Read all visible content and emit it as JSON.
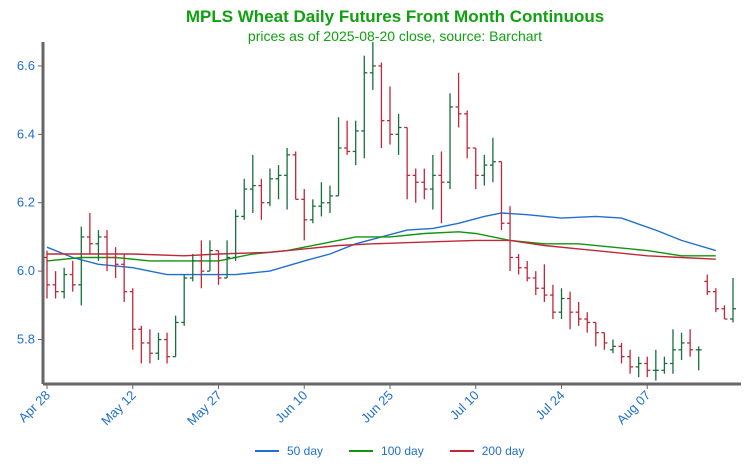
{
  "chart_data": {
    "type": "ohlc",
    "title": "MPLS Wheat Daily Futures Front Month Continuous",
    "subtitle": "prices as of 2025-08-20 close, source: Barchart",
    "ylim": [
      5.67,
      6.67
    ],
    "yticks": [
      5.8,
      6.0,
      6.2,
      6.4,
      6.6
    ],
    "xtick_labels": [
      "Apr 28",
      "May 12",
      "May 27",
      "Jun 10",
      "Jun 25",
      "Jul 10",
      "Jul 24",
      "Aug 07"
    ],
    "xtick_index": [
      0,
      10,
      20,
      30,
      40,
      50,
      60,
      70
    ],
    "up_color": "#1a6e3c",
    "down_color": "#c0283a",
    "bars": [
      {
        "d": "Apr 28",
        "o": 6.04,
        "h": 6.06,
        "l": 5.92,
        "c": 5.96
      },
      {
        "d": "Apr 29",
        "o": 5.96,
        "h": 6.0,
        "l": 5.92,
        "c": 5.94
      },
      {
        "d": "Apr 30",
        "o": 5.94,
        "h": 6.01,
        "l": 5.92,
        "c": 5.99
      },
      {
        "d": "May 01",
        "o": 5.99,
        "h": 6.03,
        "l": 5.94,
        "c": 5.96
      },
      {
        "d": "May 02",
        "o": 5.96,
        "h": 6.13,
        "l": 5.9,
        "c": 6.1
      },
      {
        "d": "May 05",
        "o": 6.1,
        "h": 6.17,
        "l": 6.05,
        "c": 6.08
      },
      {
        "d": "May 06",
        "o": 6.08,
        "h": 6.12,
        "l": 6.03,
        "c": 6.1
      },
      {
        "d": "May 07",
        "o": 6.1,
        "h": 6.12,
        "l": 6.0,
        "c": 6.04
      },
      {
        "d": "May 08",
        "o": 6.04,
        "h": 6.07,
        "l": 5.98,
        "c": 6.02
      },
      {
        "d": "May 09",
        "o": 6.02,
        "h": 6.05,
        "l": 5.91,
        "c": 5.94
      },
      {
        "d": "May 12",
        "o": 5.94,
        "h": 5.95,
        "l": 5.77,
        "c": 5.83
      },
      {
        "d": "May 13",
        "o": 5.83,
        "h": 5.84,
        "l": 5.73,
        "c": 5.79
      },
      {
        "d": "May 14",
        "o": 5.79,
        "h": 5.83,
        "l": 5.73,
        "c": 5.76
      },
      {
        "d": "May 15",
        "o": 5.76,
        "h": 5.82,
        "l": 5.74,
        "c": 5.8
      },
      {
        "d": "May 16",
        "o": 5.8,
        "h": 5.82,
        "l": 5.73,
        "c": 5.75
      },
      {
        "d": "May 19",
        "o": 5.75,
        "h": 5.87,
        "l": 5.75,
        "c": 5.85
      },
      {
        "d": "May 20",
        "o": 5.85,
        "h": 5.99,
        "l": 5.84,
        "c": 5.98
      },
      {
        "d": "May 21",
        "o": 5.98,
        "h": 6.05,
        "l": 5.97,
        "c": 6.03
      },
      {
        "d": "May 22",
        "o": 6.03,
        "h": 6.09,
        "l": 5.95,
        "c": 6.0
      },
      {
        "d": "May 23",
        "o": 6.0,
        "h": 6.09,
        "l": 6.0,
        "c": 6.06
      },
      {
        "d": "May 26",
        "o": 6.06,
        "h": 6.06,
        "l": 5.96,
        "c": 5.98
      },
      {
        "d": "May 27",
        "o": 5.98,
        "h": 6.09,
        "l": 5.98,
        "c": 6.04
      },
      {
        "d": "May 28",
        "o": 6.04,
        "h": 6.18,
        "l": 6.03,
        "c": 6.16
      },
      {
        "d": "May 29",
        "o": 6.16,
        "h": 6.27,
        "l": 6.15,
        "c": 6.24
      },
      {
        "d": "May 30",
        "o": 6.24,
        "h": 6.34,
        "l": 6.17,
        "c": 6.25
      },
      {
        "d": "Jun 02",
        "o": 6.25,
        "h": 6.27,
        "l": 6.15,
        "c": 6.2
      },
      {
        "d": "Jun 03",
        "o": 6.2,
        "h": 6.3,
        "l": 6.19,
        "c": 6.27
      },
      {
        "d": "Jun 04",
        "o": 6.27,
        "h": 6.31,
        "l": 6.21,
        "c": 6.28
      },
      {
        "d": "Jun 05",
        "o": 6.28,
        "h": 6.36,
        "l": 6.18,
        "c": 6.34
      },
      {
        "d": "Jun 06",
        "o": 6.34,
        "h": 6.35,
        "l": 6.21,
        "c": 6.21
      },
      {
        "d": "Jun 09",
        "o": 6.21,
        "h": 6.24,
        "l": 6.09,
        "c": 6.15
      },
      {
        "d": "Jun 10",
        "o": 6.15,
        "h": 6.21,
        "l": 6.14,
        "c": 6.19
      },
      {
        "d": "Jun 11",
        "o": 6.19,
        "h": 6.26,
        "l": 6.16,
        "c": 6.2
      },
      {
        "d": "Jun 12",
        "o": 6.2,
        "h": 6.25,
        "l": 6.17,
        "c": 6.22
      },
      {
        "d": "Jun 13",
        "o": 6.22,
        "h": 6.45,
        "l": 6.22,
        "c": 6.36
      },
      {
        "d": "Jun 16",
        "o": 6.36,
        "h": 6.44,
        "l": 6.34,
        "c": 6.35
      },
      {
        "d": "Jun 17",
        "o": 6.35,
        "h": 6.44,
        "l": 6.31,
        "c": 6.41
      },
      {
        "d": "Jun 18",
        "o": 6.41,
        "h": 6.63,
        "l": 6.33,
        "c": 6.58
      },
      {
        "d": "Jun 20",
        "o": 6.58,
        "h": 6.67,
        "l": 6.53,
        "c": 6.6
      },
      {
        "d": "Jun 23",
        "o": 6.6,
        "h": 6.61,
        "l": 6.36,
        "c": 6.44
      },
      {
        "d": "Jun 24",
        "o": 6.44,
        "h": 6.54,
        "l": 6.37,
        "c": 6.4
      },
      {
        "d": "Jun 25",
        "o": 6.4,
        "h": 6.46,
        "l": 6.34,
        "c": 6.42
      },
      {
        "d": "Jun 26",
        "o": 6.42,
        "h": 6.42,
        "l": 6.21,
        "c": 6.28
      },
      {
        "d": "Jun 27",
        "o": 6.28,
        "h": 6.3,
        "l": 6.2,
        "c": 6.26
      },
      {
        "d": "Jun 30",
        "o": 6.26,
        "h": 6.3,
        "l": 6.21,
        "c": 6.24
      },
      {
        "d": "Jul 01",
        "o": 6.24,
        "h": 6.34,
        "l": 6.18,
        "c": 6.28
      },
      {
        "d": "Jul 02",
        "o": 6.28,
        "h": 6.35,
        "l": 6.14,
        "c": 6.26
      },
      {
        "d": "Jul 03",
        "o": 6.26,
        "h": 6.52,
        "l": 6.24,
        "c": 6.48
      },
      {
        "d": "Jul 07",
        "o": 6.48,
        "h": 6.58,
        "l": 6.42,
        "c": 6.46
      },
      {
        "d": "Jul 08",
        "o": 6.46,
        "h": 6.47,
        "l": 6.33,
        "c": 6.36
      },
      {
        "d": "Jul 09",
        "o": 6.36,
        "h": 6.36,
        "l": 6.24,
        "c": 6.28
      },
      {
        "d": "Jul 10",
        "o": 6.28,
        "h": 6.34,
        "l": 6.25,
        "c": 6.31
      },
      {
        "d": "Jul 11",
        "o": 6.31,
        "h": 6.39,
        "l": 6.26,
        "c": 6.32
      },
      {
        "d": "Jul 14",
        "o": 6.32,
        "h": 6.32,
        "l": 6.12,
        "c": 6.14
      },
      {
        "d": "Jul 15",
        "o": 6.14,
        "h": 6.19,
        "l": 6.0,
        "c": 6.04
      },
      {
        "d": "Jul 16",
        "o": 6.04,
        "h": 6.05,
        "l": 5.99,
        "c": 6.01
      },
      {
        "d": "Jul 17",
        "o": 6.01,
        "h": 6.03,
        "l": 5.97,
        "c": 5.98
      },
      {
        "d": "Jul 18",
        "o": 5.98,
        "h": 6.0,
        "l": 5.93,
        "c": 5.95
      },
      {
        "d": "Jul 21",
        "o": 5.95,
        "h": 6.02,
        "l": 5.91,
        "c": 5.93
      },
      {
        "d": "Jul 22",
        "o": 5.93,
        "h": 5.96,
        "l": 5.86,
        "c": 5.88
      },
      {
        "d": "Jul 23",
        "o": 5.88,
        "h": 5.95,
        "l": 5.86,
        "c": 5.92
      },
      {
        "d": "Jul 24",
        "o": 5.92,
        "h": 5.94,
        "l": 5.83,
        "c": 5.88
      },
      {
        "d": "Jul 25",
        "o": 5.88,
        "h": 5.91,
        "l": 5.84,
        "c": 5.86
      },
      {
        "d": "Jul 28",
        "o": 5.86,
        "h": 5.88,
        "l": 5.82,
        "c": 5.85
      },
      {
        "d": "Jul 29",
        "o": 5.85,
        "h": 5.85,
        "l": 5.78,
        "c": 5.82
      },
      {
        "d": "Jul 30",
        "o": 5.82,
        "h": 5.82,
        "l": 5.77,
        "c": 5.79
      },
      {
        "d": "Jul 31",
        "o": 5.77,
        "h": 5.8,
        "l": 5.76,
        "c": 5.78
      },
      {
        "d": "Aug 01",
        "o": 5.78,
        "h": 5.79,
        "l": 5.73,
        "c": 5.75
      },
      {
        "d": "Aug 04",
        "o": 5.75,
        "h": 5.77,
        "l": 5.7,
        "c": 5.72
      },
      {
        "d": "Aug 05",
        "o": 5.72,
        "h": 5.75,
        "l": 5.69,
        "c": 5.73
      },
      {
        "d": "Aug 06",
        "o": 5.73,
        "h": 5.75,
        "l": 5.69,
        "c": 5.71
      },
      {
        "d": "Aug 07",
        "o": 5.71,
        "h": 5.77,
        "l": 5.68,
        "c": 5.71
      },
      {
        "d": "Aug 08",
        "o": 5.71,
        "h": 5.75,
        "l": 5.7,
        "c": 5.73
      },
      {
        "d": "Aug 11",
        "o": 5.73,
        "h": 5.83,
        "l": 5.7,
        "c": 5.77
      },
      {
        "d": "Aug 12",
        "o": 5.77,
        "h": 5.82,
        "l": 5.74,
        "c": 5.79
      },
      {
        "d": "Aug 13",
        "o": 5.79,
        "h": 5.83,
        "l": 5.75,
        "c": 5.77
      },
      {
        "d": "Aug 14",
        "o": 5.77,
        "h": 5.78,
        "l": 5.71,
        "c": 5.77
      },
      {
        "d": "Aug 15",
        "o": 5.97,
        "h": 5.99,
        "l": 5.93,
        "c": 5.94
      },
      {
        "d": "Aug 18",
        "o": 5.94,
        "h": 5.95,
        "l": 5.88,
        "c": 5.89
      },
      {
        "d": "Aug 19",
        "o": 5.89,
        "h": 5.9,
        "l": 5.86,
        "c": 5.86
      },
      {
        "d": "Aug 20",
        "o": 5.86,
        "h": 5.98,
        "l": 5.85,
        "c": 5.89
      }
    ],
    "moving_averages": [
      {
        "name": "50 day",
        "color": "#1f6fd1",
        "values": [
          [
            0,
            6.07
          ],
          [
            3,
            6.04
          ],
          [
            6,
            6.02
          ],
          [
            10,
            6.01
          ],
          [
            14,
            5.99
          ],
          [
            18,
            5.99
          ],
          [
            22,
            5.99
          ],
          [
            26,
            6.0
          ],
          [
            30,
            6.03
          ],
          [
            33,
            6.05
          ],
          [
            36,
            6.08
          ],
          [
            39,
            6.1
          ],
          [
            42,
            6.12
          ],
          [
            45,
            6.125
          ],
          [
            48,
            6.14
          ],
          [
            51,
            6.16
          ],
          [
            53,
            6.17
          ],
          [
            56,
            6.165
          ],
          [
            60,
            6.155
          ],
          [
            64,
            6.16
          ],
          [
            67,
            6.155
          ],
          [
            71,
            6.12
          ],
          [
            74,
            6.09
          ],
          [
            78,
            6.06
          ]
        ]
      },
      {
        "name": "100 day",
        "color": "#12940f",
        "values": [
          [
            0,
            6.03
          ],
          [
            4,
            6.04
          ],
          [
            8,
            6.04
          ],
          [
            12,
            6.03
          ],
          [
            16,
            6.03
          ],
          [
            20,
            6.03
          ],
          [
            24,
            6.05
          ],
          [
            28,
            6.06
          ],
          [
            32,
            6.08
          ],
          [
            36,
            6.1
          ],
          [
            40,
            6.1
          ],
          [
            44,
            6.11
          ],
          [
            48,
            6.115
          ],
          [
            50,
            6.11
          ],
          [
            54,
            6.09
          ],
          [
            58,
            6.08
          ],
          [
            62,
            6.08
          ],
          [
            66,
            6.07
          ],
          [
            70,
            6.06
          ],
          [
            74,
            6.045
          ],
          [
            78,
            6.045
          ]
        ]
      },
      {
        "name": "200 day",
        "color": "#c0283a",
        "values": [
          [
            0,
            6.05
          ],
          [
            5,
            6.05
          ],
          [
            10,
            6.05
          ],
          [
            16,
            6.045
          ],
          [
            20,
            6.05
          ],
          [
            26,
            6.055
          ],
          [
            30,
            6.065
          ],
          [
            34,
            6.075
          ],
          [
            38,
            6.08
          ],
          [
            44,
            6.085
          ],
          [
            50,
            6.09
          ],
          [
            54,
            6.09
          ],
          [
            58,
            6.075
          ],
          [
            62,
            6.065
          ],
          [
            66,
            6.055
          ],
          [
            70,
            6.045
          ],
          [
            74,
            6.04
          ],
          [
            78,
            6.035
          ]
        ]
      }
    ],
    "legend_position": "bottom-center"
  }
}
